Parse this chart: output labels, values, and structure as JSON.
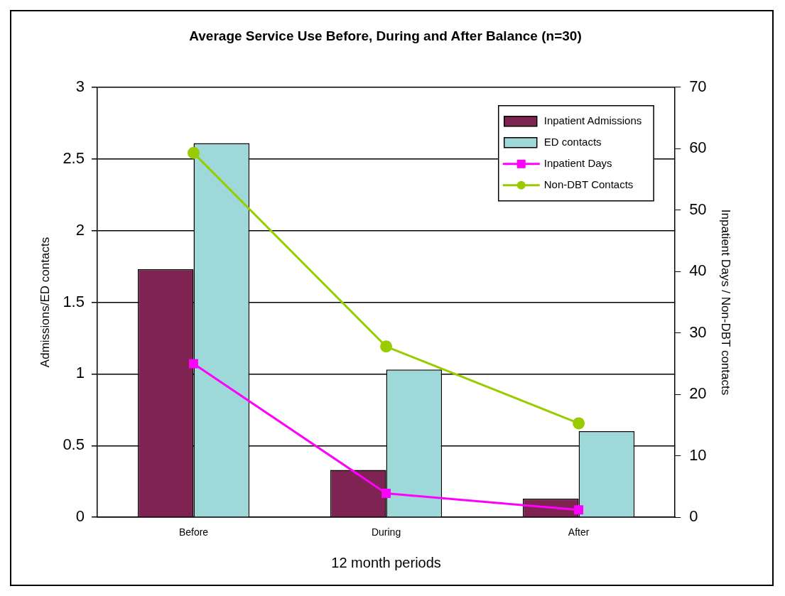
{
  "chart_data": {
    "type": "bar",
    "title": "Average Service Use Before, During and After Balance (n=30)",
    "xlabel": "12 month periods",
    "ylabel": "Admissions/ED contacts",
    "y2label": "Inpatient Days / Non-DBT contacts",
    "categories": [
      "Before",
      "During",
      "After"
    ],
    "series": [
      {
        "name": "Inpatient Admissions",
        "color": "#7f2352",
        "values": [
          1.73,
          0.33,
          0.13
        ]
      },
      {
        "name": "ED contacts",
        "color": "#9fd8d8",
        "values": [
          2.61,
          1.03,
          0.6
        ]
      },
      {
        "name": "Inpatient Days",
        "type": "line",
        "axis": "y2",
        "marker": "square",
        "color": "#ff00ff",
        "values": [
          25,
          3.9,
          1.2
        ]
      },
      {
        "name": "Non-DBT Contacts",
        "type": "line",
        "axis": "y2",
        "marker": "circle",
        "color": "#99cc00",
        "values": [
          59.3,
          27.8,
          15.3
        ]
      }
    ],
    "ylim": [
      0,
      3
    ],
    "yticks": [
      0,
      0.5,
      1,
      1.5,
      2,
      2.5,
      3
    ],
    "y2lim": [
      0,
      70
    ],
    "y2ticks": [
      0,
      10,
      20,
      30,
      40,
      50,
      60,
      70
    ],
    "grid": "y",
    "legend": "top right"
  }
}
